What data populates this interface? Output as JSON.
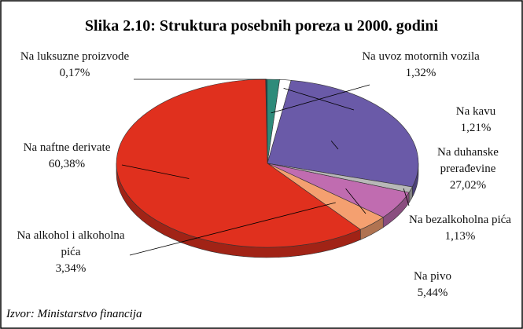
{
  "chart_data": {
    "type": "pie",
    "title": "Slika 2.10: Struktura posebnih poreza u 2000. godini",
    "source": "Izvor: Ministarstvo financija",
    "categories": [
      "Na luksuzne proizvode",
      "Na uvoz motornih vozila",
      "Na kavu",
      "Na duhanske prerađevine",
      "Na bezalkoholna pića",
      "Na pivo",
      "Na alkohol i alkoholna pića",
      "Na naftne derivate"
    ],
    "values": [
      0.17,
      1.32,
      1.21,
      27.02,
      1.13,
      5.44,
      3.34,
      60.38
    ],
    "value_labels": [
      "0,17%",
      "1,32%",
      "1,21%",
      "27,02%",
      "1,13%",
      "5,44%",
      "3,34%",
      "60,38%"
    ],
    "colors": [
      "#1f4f4f",
      "#2e8b7a",
      "#ffffff",
      "#6a5aa8",
      "#b8b8b8",
      "#c06cb0",
      "#f4a070",
      "#e0301e"
    ]
  }
}
